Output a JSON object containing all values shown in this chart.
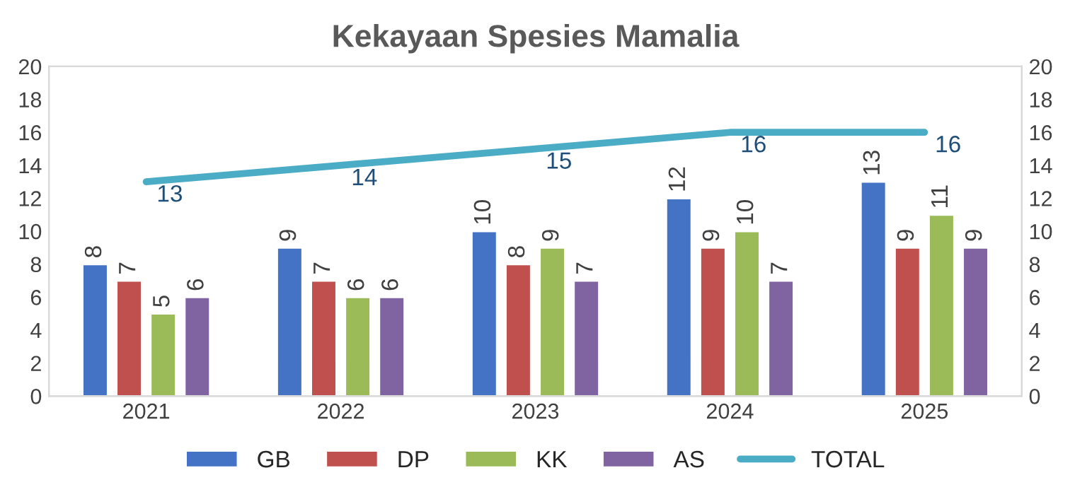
{
  "chart_data": {
    "type": "bar",
    "title": "Kekayaan Spesies Mamalia",
    "categories": [
      "2021",
      "2022",
      "2023",
      "2024",
      "2025"
    ],
    "series": [
      {
        "name": "GB",
        "color": "#4472c4",
        "values": [
          8,
          9,
          10,
          12,
          13
        ]
      },
      {
        "name": "DP",
        "color": "#c0504d",
        "values": [
          7,
          7,
          8,
          9,
          9
        ]
      },
      {
        "name": "KK",
        "color": "#9bbb59",
        "values": [
          5,
          6,
          9,
          10,
          11
        ]
      },
      {
        "name": "AS",
        "color": "#8064a2",
        "values": [
          6,
          6,
          7,
          7,
          9
        ]
      },
      {
        "name": "TOTAL",
        "type": "line",
        "color": "#4bacc6",
        "values": [
          13,
          14,
          15,
          16,
          16
        ]
      }
    ],
    "ylim": [
      0,
      20
    ],
    "yticks": [
      0,
      2,
      4,
      6,
      8,
      10,
      12,
      14,
      16,
      18,
      20
    ],
    "y2lim": [
      0,
      20
    ],
    "y2ticks": [
      0,
      2,
      4,
      6,
      8,
      10,
      12,
      14,
      16,
      18,
      20
    ],
    "data_labels": true,
    "grid": false,
    "legend": "bottom",
    "marker": "none",
    "line_style": "solid"
  }
}
